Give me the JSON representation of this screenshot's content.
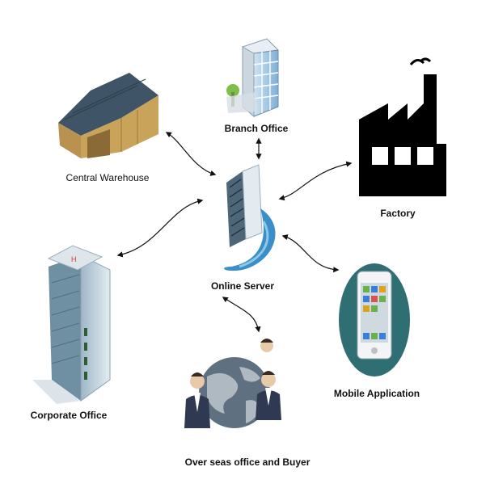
{
  "nodes": {
    "branch_office": "Branch Office",
    "central_warehouse": "Central Warehouse",
    "factory": "Factory",
    "online_server": "Online Server",
    "corporate_office": "Corporate Office",
    "mobile_application": "Mobile Application",
    "overseas": "Over seas office and Buyer"
  },
  "colors": {
    "factory": "#000000",
    "server_swirl": "#3a8fc9",
    "phone_circle": "#2f6f73",
    "warehouse_roof": "#3f5466",
    "warehouse_wall": "#c9a35a",
    "building_glass": "#3f8fbf",
    "globe": "#5f7180",
    "suit": "#2f3a52"
  },
  "icons": [
    "building-icon",
    "warehouse-icon",
    "factory-icon",
    "server-icon",
    "tower-icon",
    "smartphone-icon",
    "globe-icon",
    "businessman-icon"
  ]
}
